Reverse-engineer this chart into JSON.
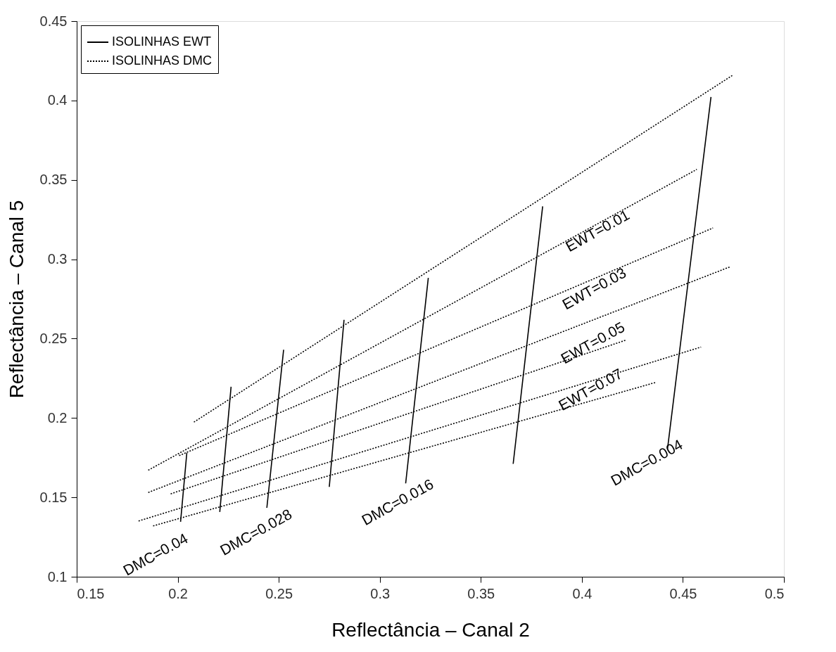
{
  "chart_data": {
    "type": "line",
    "xlabel": "Reflectância – Canal 2",
    "ylabel": "Reflectância – Canal 5",
    "xlim": [
      0.15,
      0.5
    ],
    "xticks": [
      0.15,
      0.2,
      0.25,
      0.3,
      0.35,
      0.4,
      0.45,
      0.5
    ],
    "ylim": [
      0.1,
      0.45
    ],
    "yticks": [
      0.1,
      0.15,
      0.2,
      0.25,
      0.3,
      0.35,
      0.4,
      0.45
    ],
    "grid": false,
    "legend": "top left",
    "marker": "none",
    "series": [
      {
        "name": "ISOLINHAS EWT",
        "color": "#000000",
        "line_style": "solid",
        "x": [
          0.2014,
          0.2045,
          null,
          0.2208,
          0.2264,
          null,
          0.2441,
          0.2524,
          null,
          0.275,
          0.2823,
          null,
          0.3128,
          0.324,
          null,
          0.366,
          0.3806,
          null,
          0.4424,
          0.4639
        ],
        "values": [
          0.1346,
          0.1781,
          null,
          0.1408,
          0.2197,
          null,
          0.1434,
          0.243,
          null,
          0.1566,
          0.2618,
          null,
          0.1588,
          0.2882,
          null,
          0.1711,
          0.3333,
          null,
          0.1807,
          0.4022
        ]
      },
      {
        "name": "ISOLINHAS DMC",
        "color": "#000000",
        "line_style": "dotted",
        "x": [
          0.208,
          0.475,
          null,
          0.1854,
          0.4569,
          null,
          0.2007,
          0.4649,
          null,
          0.1854,
          0.4733,
          null,
          0.1965,
          0.4219,
          null,
          0.1806,
          0.459,
          null,
          0.1878,
          0.4365
        ],
        "values": [
          0.1974,
          0.4162,
          null,
          0.1671,
          0.3566,
          null,
          0.1763,
          0.3197,
          null,
          0.1531,
          0.2952,
          null,
          0.1522,
          0.2491,
          null,
          0.1351,
          0.2447,
          null,
          0.132,
          0.2224
        ]
      }
    ],
    "annotations": [
      "EWT=0.01",
      "EWT=0.03",
      "EWT=0.05",
      "EWT=0.07",
      "DMC=0.004",
      "DMC=0.016",
      "DMC=0.028",
      "DMC=0.04"
    ]
  }
}
